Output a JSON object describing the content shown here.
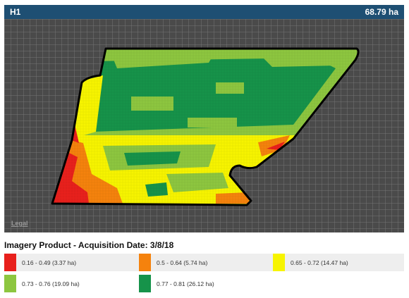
{
  "header": {
    "field_name": "H1",
    "area": "68.79 ha"
  },
  "map": {
    "legal_link": "Legal"
  },
  "legend": {
    "title": "Imagery Product - Acquisition Date: 3/8/18",
    "items": [
      {
        "label": "0.16 - 0.49 (3.37 ha)",
        "color": "#e8201c"
      },
      {
        "label": "0.5 - 0.64 (5.74 ha)",
        "color": "#f5820d"
      },
      {
        "label": "0.65 - 0.72 (14.47 ha)",
        "color": "#f7f400"
      },
      {
        "label": "0.73 - 0.76 (19.09 ha)",
        "color": "#8dc63f"
      },
      {
        "label": "0.77 - 0.81 (26.12 ha)",
        "color": "#16934a"
      }
    ]
  }
}
